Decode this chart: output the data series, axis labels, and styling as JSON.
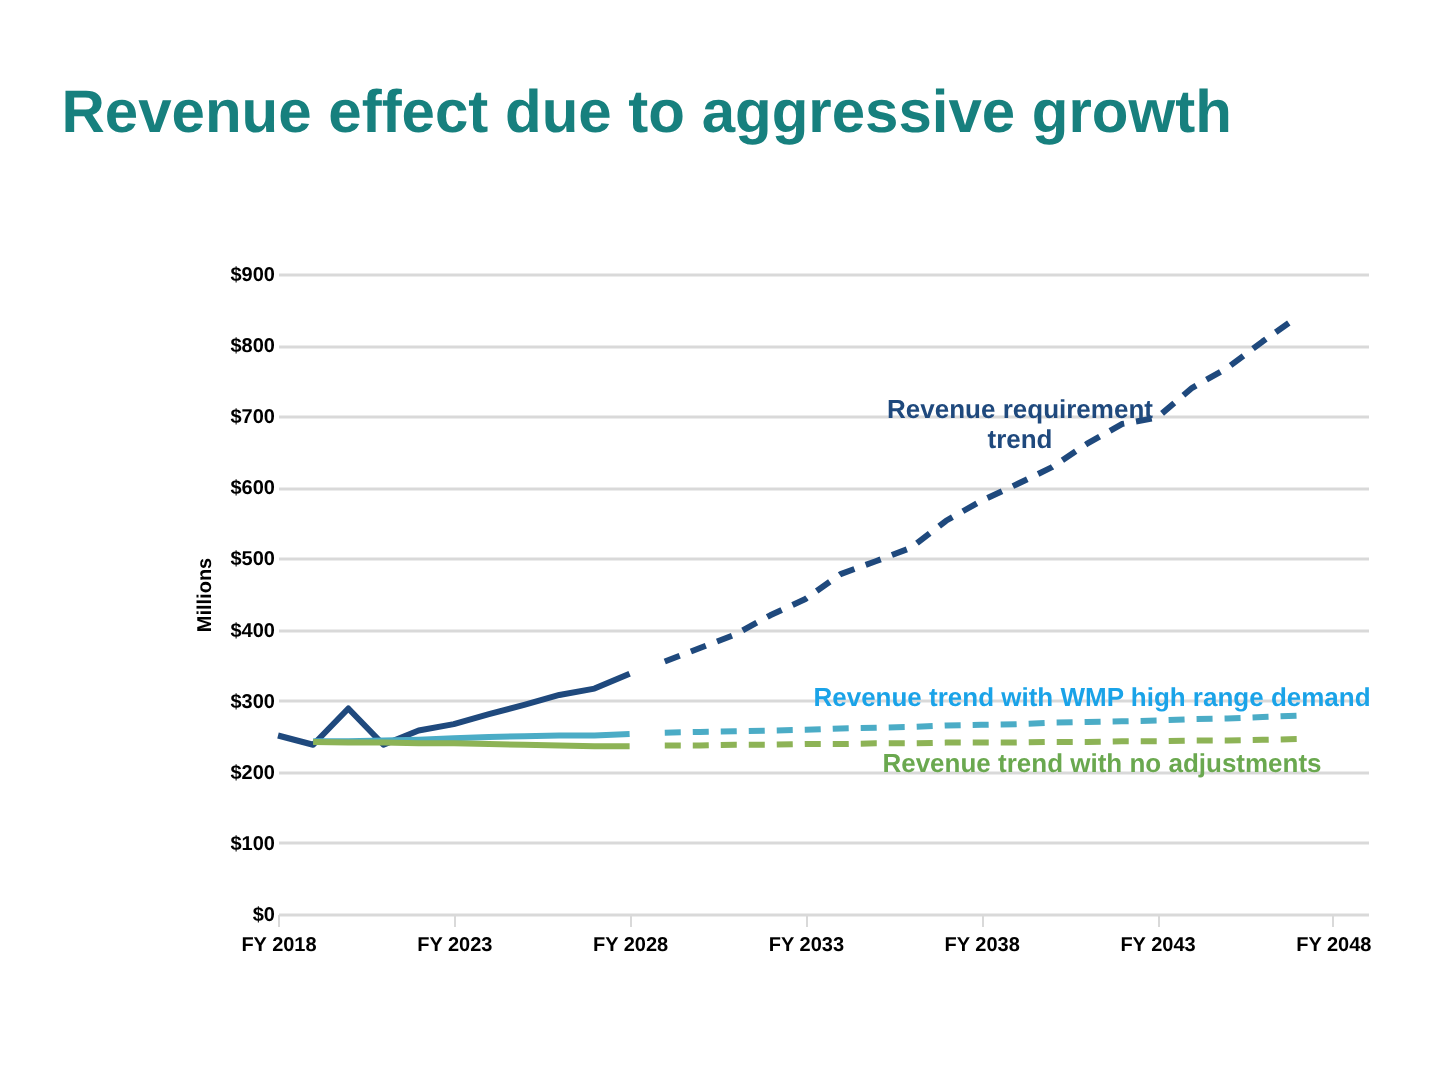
{
  "chart_data": {
    "type": "line",
    "title": "Revenue effect due to aggressive growth",
    "ylabel": "Millions",
    "categories": [
      "FY 2018",
      null,
      null,
      null,
      null,
      "FY 2023",
      null,
      null,
      null,
      null,
      "FY 2028",
      null,
      null,
      null,
      null,
      "FY 2033",
      null,
      null,
      null,
      null,
      "FY 2038",
      null,
      null,
      null,
      null,
      "FY 2043",
      null,
      null,
      null,
      null,
      "FY 2048",
      null
    ],
    "ylim": [
      0,
      900
    ],
    "yticks": [
      {
        "value": 0,
        "label": "$0"
      },
      {
        "value": 100,
        "label": "$100"
      },
      {
        "value": 200,
        "label": "$200"
      },
      {
        "value": 300,
        "label": "$300"
      },
      {
        "value": 400,
        "label": "$400"
      },
      {
        "value": 500,
        "label": "$500"
      },
      {
        "value": 600,
        "label": "$600"
      },
      {
        "value": 700,
        "label": "$700"
      },
      {
        "value": 800,
        "label": "$800"
      },
      {
        "value": 900,
        "label": "$900"
      }
    ],
    "grid": "y",
    "marker": "none",
    "series": [
      {
        "color": "#1f497d",
        "line_style": "solid",
        "values": [
          251,
          238,
          289,
          238,
          258,
          267,
          281,
          294,
          308,
          317,
          338,
          null,
          null,
          null,
          null,
          null,
          null,
          null,
          null,
          null,
          null,
          null,
          null,
          null,
          null,
          null,
          null,
          null,
          null,
          null,
          null,
          null
        ]
      },
      {
        "color": "#4bacc6",
        "line_style": "solid",
        "values": [
          null,
          243,
          243,
          244,
          245,
          247,
          249,
          250,
          251,
          251,
          253,
          null,
          null,
          null,
          null,
          null,
          null,
          null,
          null,
          null,
          null,
          null,
          null,
          null,
          null,
          null,
          null,
          null,
          null,
          null,
          null,
          null
        ]
      },
      {
        "color": "#8db356",
        "line_style": "solid",
        "values": [
          null,
          242,
          241,
          241,
          240,
          240,
          239,
          238,
          237,
          236,
          236,
          null,
          null,
          null,
          null,
          null,
          null,
          null,
          null,
          null,
          null,
          null,
          null,
          null,
          null,
          null,
          null,
          null,
          null,
          null,
          null,
          null
        ]
      },
      {
        "color": "#1f497d",
        "line_style": "dashed",
        "values": [
          null,
          null,
          null,
          null,
          null,
          null,
          null,
          null,
          null,
          null,
          null,
          355,
          374,
          393,
          420,
          443,
          478,
          496,
          515,
          553,
          581,
          604,
          628,
          661,
          689,
          698,
          740,
          768,
          805,
          840,
          null,
          null
        ]
      },
      {
        "color": "#4bacc6",
        "line_style": "dashed",
        "values": [
          null,
          null,
          null,
          null,
          null,
          null,
          null,
          null,
          null,
          null,
          null,
          255,
          256,
          257,
          258,
          259,
          261,
          262,
          263,
          265,
          266,
          267,
          269,
          270,
          271,
          272,
          274,
          275,
          277,
          279,
          null,
          null
        ]
      },
      {
        "color": "#8db356",
        "line_style": "dashed",
        "values": [
          null,
          null,
          null,
          null,
          null,
          null,
          null,
          null,
          null,
          null,
          null,
          237,
          237,
          238,
          238,
          239,
          239,
          240,
          240,
          241,
          241,
          241,
          242,
          242,
          243,
          243,
          244,
          244,
          245,
          246,
          null,
          null
        ]
      }
    ],
    "annotations": [
      "Revenue requirement\ntrend",
      "Revenue trend with WMP high range demand",
      "Revenue trend with no adjustments"
    ]
  }
}
